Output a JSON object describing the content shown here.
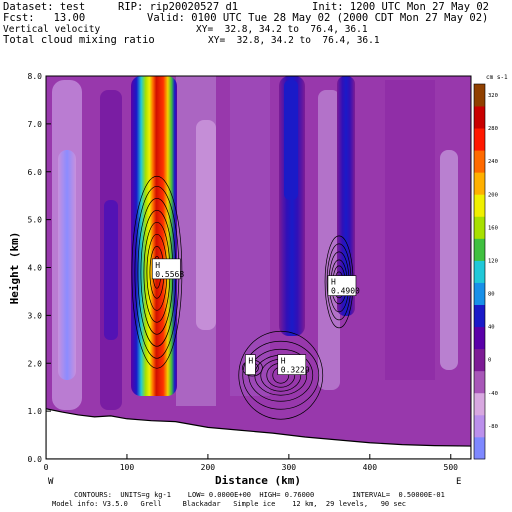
{
  "header": {
    "dataset": "Dataset: test",
    "rip": "RIP: rip20020527 d1",
    "init": "Init: 1200 UTC Mon 27 May 02",
    "fcst": "Fcst:   13.00",
    "valid": "Valid: 0100 UTC Tue 28 May 02 (2000 CDT Mon 27 May 02)",
    "field1": "Vertical velocity",
    "xy1": "XY=  32.8, 34.2 to  76.4, 36.1",
    "field2": "Total cloud mixing ratio",
    "xy2": "XY=  32.8, 34.2 to  76.4, 36.1"
  },
  "footer": {
    "contours": "CONTOURS:  UNITS=g kg-1    LOW= 0.0000E+00  HIGH= 0.76000         INTERVAL=  0.50000E-01",
    "model": "Model info: V3.5.0   Grell     Blackadar   Simple ice    12 km,  29 levels,   90 sec"
  },
  "chart_data": {
    "type": "heatmap",
    "title": "Vertical velocity / Total cloud mixing ratio",
    "xlabel": "Distance (km)",
    "ylabel": "Height (km)",
    "xlim": [
      0,
      525
    ],
    "ylim": [
      0,
      8
    ],
    "x_ticks": [
      "0",
      "100",
      "200",
      "300",
      "400",
      "500"
    ],
    "y_ticks": [
      "0.0",
      "1.0",
      "2.0",
      "3.0",
      "4.0",
      "5.0",
      "6.0",
      "7.0",
      "8.0"
    ],
    "x_end_labels": [
      "W",
      "E"
    ],
    "colorbar": {
      "unit": "cm s-1",
      "labels": [
        "-80",
        "-40",
        "0",
        "40",
        "80",
        "120",
        "160",
        "200",
        "240",
        "280",
        "320"
      ],
      "colors": [
        "#7e88ff",
        "#bb90ec",
        "#d8a8e0",
        "#a857b8",
        "#7d1c95",
        "#5a00a8",
        "#1a1ac8",
        "#1890e8",
        "#20c8d8",
        "#40c040",
        "#a8e000",
        "#f0f000",
        "#ffb000",
        "#ff6a00",
        "#ff1800",
        "#c80000",
        "#904000"
      ]
    },
    "terrain_height_km": [
      [
        0,
        1.05
      ],
      [
        20,
        0.98
      ],
      [
        40,
        0.92
      ],
      [
        60,
        0.88
      ],
      [
        80,
        0.9
      ],
      [
        100,
        0.84
      ],
      [
        130,
        0.8
      ],
      [
        160,
        0.78
      ],
      [
        200,
        0.66
      ],
      [
        240,
        0.6
      ],
      [
        280,
        0.54
      ],
      [
        320,
        0.46
      ],
      [
        360,
        0.4
      ],
      [
        400,
        0.34
      ],
      [
        440,
        0.3
      ],
      [
        480,
        0.28
      ],
      [
        525,
        0.27
      ]
    ],
    "extrema": [
      {
        "type": "H",
        "value": "0.5568",
        "x_km": 135,
        "y_km": 3.95
      },
      {
        "type": "H",
        "value": "0.4900",
        "x_km": 352,
        "y_km": 3.6
      },
      {
        "type": "H",
        "value": "0.3229",
        "x_km": 290,
        "y_km": 1.95
      },
      {
        "type": "H",
        "value": "",
        "x_km": 250,
        "y_km": 1.95
      }
    ],
    "updrafts": [
      {
        "x_km": 138,
        "top_km": 8.0,
        "bottom_km": 2.0,
        "peak_cm_s": 320
      },
      {
        "x_km": 295,
        "top_km": 8.0,
        "bottom_km": 2.8,
        "peak_cm_s": 80
      },
      {
        "x_km": 365,
        "top_km": 8.0,
        "bottom_km": 3.2,
        "peak_cm_s": 80
      }
    ]
  }
}
